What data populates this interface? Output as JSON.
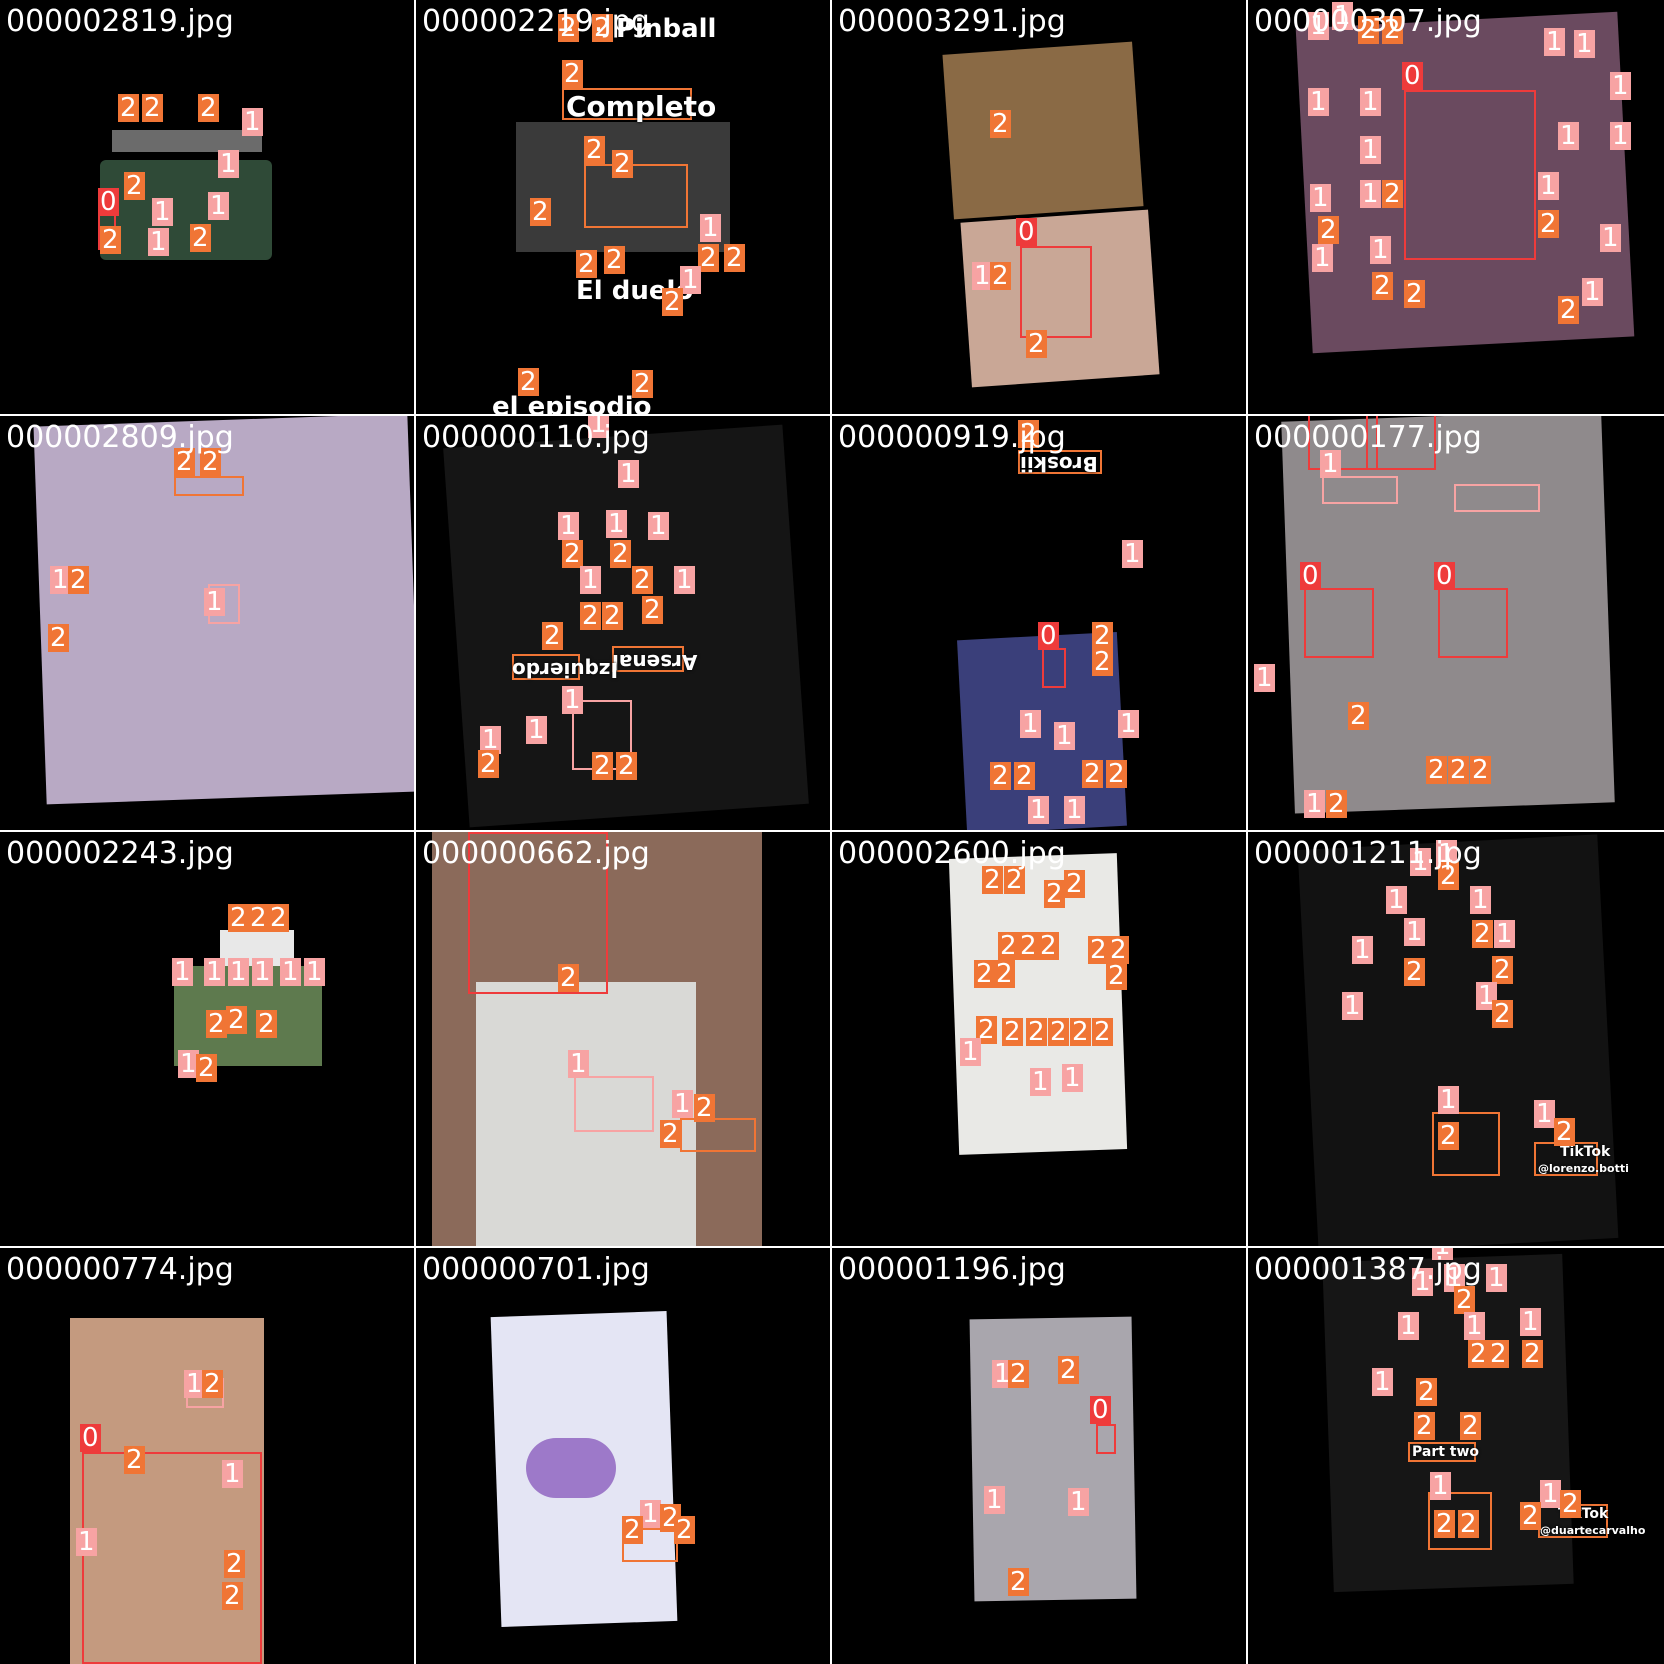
{
  "tiles": [
    {
      "filename": "000002819.jpg"
    },
    {
      "filename": "000002219.jpg",
      "overlay_texts": [
        "Pinball",
        "Completo",
        "El duelo",
        "el episodio"
      ]
    },
    {
      "filename": "000003291.jpg"
    },
    {
      "filename": "000000307.jpg"
    },
    {
      "filename": "000002809.jpg"
    },
    {
      "filename": "000000110.jpg",
      "overlay_texts": [
        "Arsenal",
        "Izquierdo"
      ]
    },
    {
      "filename": "000000919.jpg",
      "overlay_texts": [
        "Broskii"
      ]
    },
    {
      "filename": "000000177.jpg"
    },
    {
      "filename": "000002243.jpg"
    },
    {
      "filename": "000000662.jpg"
    },
    {
      "filename": "000002600.jpg"
    },
    {
      "filename": "000001211.jpg",
      "overlay_texts": [
        "TikTok",
        "@lorenzo.botti"
      ]
    },
    {
      "filename": "000000774.jpg"
    },
    {
      "filename": "000000701.jpg"
    },
    {
      "filename": "000001196.jpg"
    },
    {
      "filename": "000001387.jpg",
      "overlay_texts": [
        "Part two",
        "TikTok",
        "@duartecarvalho"
      ]
    }
  ],
  "class_labels": [
    "0",
    "1",
    "2"
  ],
  "colors": {
    "class_0": "#ee3b3b",
    "class_1": "#f7a3a3",
    "class_2": "#f07535",
    "background": "#000000"
  }
}
